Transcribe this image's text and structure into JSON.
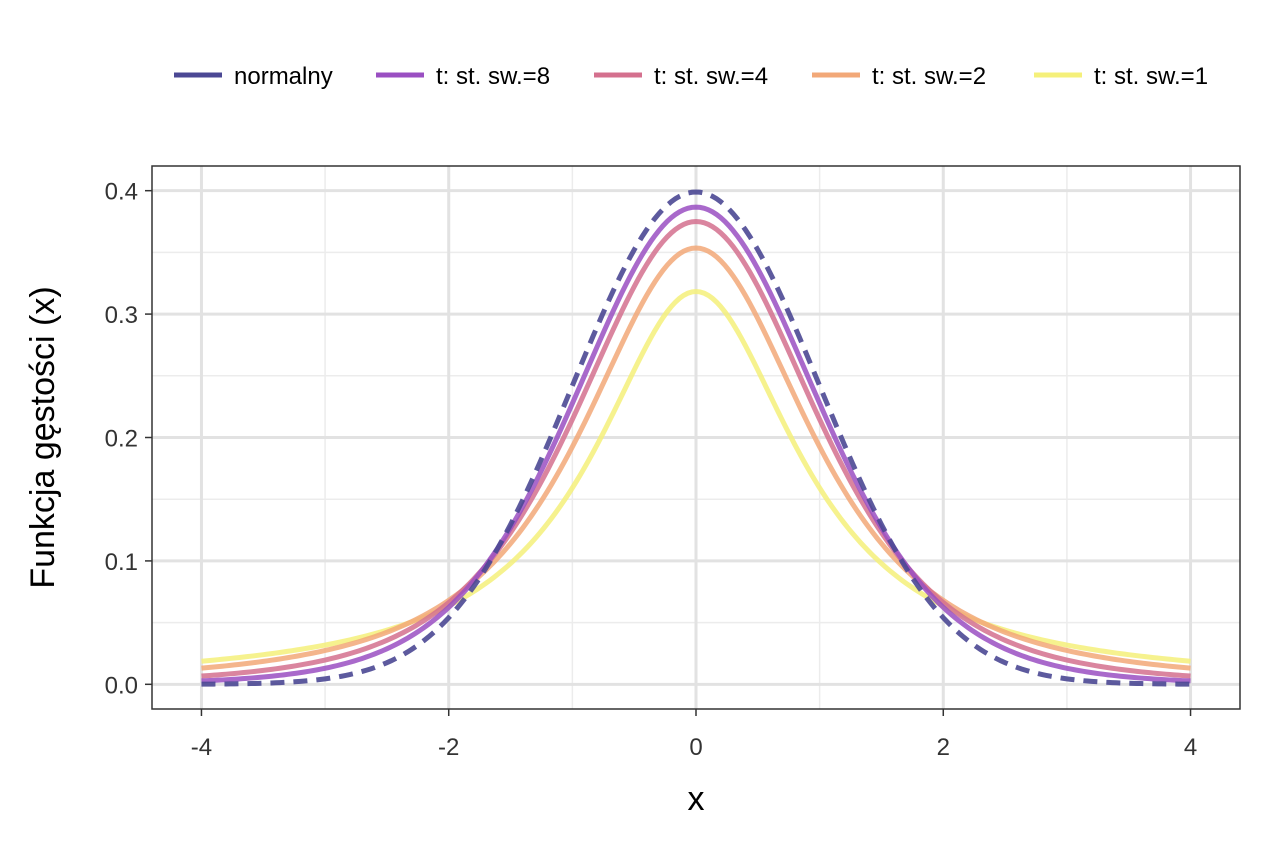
{
  "chart_data": {
    "type": "line",
    "title": "",
    "xlabel": "x",
    "ylabel": "Funkcja gęstości (x)",
    "xlim": [
      -4,
      4
    ],
    "ylim": [
      0,
      0.4
    ],
    "xticks": [
      -4,
      -2,
      0,
      2,
      4
    ],
    "xtick_labels": [
      "-4",
      "-2",
      "0",
      "2",
      "4"
    ],
    "yticks": [
      0.0,
      0.1,
      0.2,
      0.3,
      0.4
    ],
    "ytick_labels": [
      "0.0",
      "0.1",
      "0.2",
      "0.3",
      "0.4"
    ],
    "grid": true,
    "legend_position": "top",
    "x": [
      -4,
      -3.5,
      -3,
      -2.5,
      -2,
      -1.5,
      -1,
      -0.5,
      0,
      0.5,
      1,
      1.5,
      2,
      2.5,
      3,
      3.5,
      4
    ],
    "series": [
      {
        "name": "normalny",
        "color": "#4b4894",
        "dashed": true,
        "values": [
          0.0001,
          0.0009,
          0.0044,
          0.0175,
          0.054,
          0.1295,
          0.242,
          0.3521,
          0.3989,
          0.3521,
          0.242,
          0.1295,
          0.054,
          0.0175,
          0.0044,
          0.0009,
          0.0001
        ]
      },
      {
        "name": "t: st. sw.=8",
        "color": "#9a4fc2",
        "dashed": false,
        "values": [
          0.0036,
          0.0068,
          0.0133,
          0.0275,
          0.0581,
          0.1191,
          0.2276,
          0.3432,
          0.3867,
          0.3432,
          0.2276,
          0.1191,
          0.0581,
          0.0275,
          0.0133,
          0.0068,
          0.0036
        ]
      },
      {
        "name": "t: st. sw.=4",
        "color": "#d4708e",
        "dashed": false,
        "values": [
          0.0067,
          0.0102,
          0.016,
          0.028,
          0.0661,
          0.1111,
          0.2147,
          0.3131,
          0.375,
          0.3131,
          0.2147,
          0.1111,
          0.0661,
          0.028,
          0.016,
          0.0102,
          0.0067
        ]
      },
      {
        "name": "t: st. sw.=2",
        "color": "#f2a878",
        "dashed": false,
        "values": [
          0.0131,
          0.0179,
          0.0274,
          0.0431,
          0.068,
          0.113,
          0.1925,
          0.2962,
          0.3536,
          0.2962,
          0.1925,
          0.113,
          0.068,
          0.0431,
          0.0274,
          0.0179,
          0.0131
        ]
      },
      {
        "name": "t: st. sw.=1",
        "color": "#f5f07a",
        "dashed": false,
        "values": [
          0.0187,
          0.0241,
          0.0318,
          0.0439,
          0.0637,
          0.0979,
          0.1592,
          0.2546,
          0.3183,
          0.2546,
          0.1592,
          0.0979,
          0.0637,
          0.0439,
          0.0318,
          0.0241,
          0.0187
        ]
      }
    ]
  }
}
